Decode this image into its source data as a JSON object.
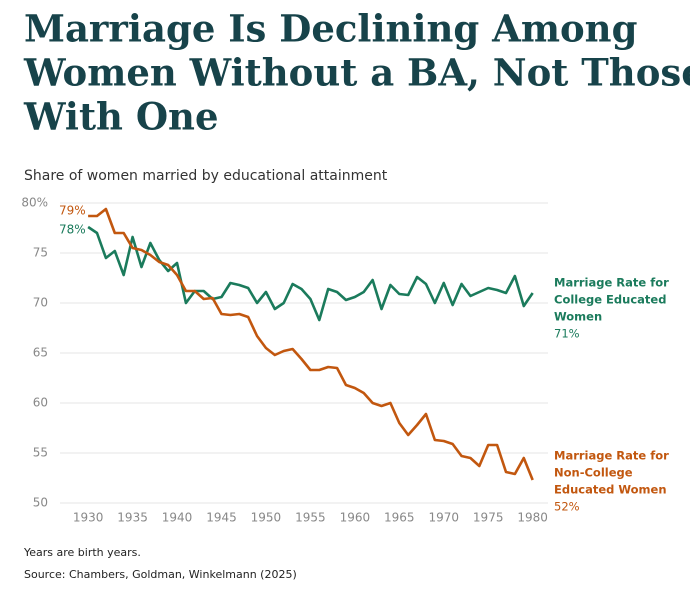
{
  "chart_data": {
    "type": "line",
    "title_lines": [
      "Marriage Is Declining Among",
      "Women Without a BA, Not Those",
      "With One"
    ],
    "subtitle": "Share of women married by educational attainment",
    "notes": [
      "Years are birth years.",
      "Source: Chambers, Goldman, Winkelmann (2025)"
    ],
    "x": [
      1930,
      1931,
      1932,
      1933,
      1934,
      1935,
      1936,
      1937,
      1938,
      1939,
      1940,
      1941,
      1942,
      1943,
      1944,
      1945,
      1946,
      1947,
      1948,
      1949,
      1950,
      1951,
      1952,
      1953,
      1954,
      1955,
      1956,
      1957,
      1958,
      1959,
      1960,
      1961,
      1962,
      1963,
      1964,
      1965,
      1966,
      1967,
      1968,
      1969,
      1970,
      1971,
      1972,
      1973,
      1974,
      1975,
      1976,
      1977,
      1978,
      1979,
      1980
    ],
    "xlim": [
      1926.5,
      1981.5
    ],
    "xticks": [
      1930,
      1935,
      1940,
      1945,
      1950,
      1955,
      1960,
      1965,
      1970,
      1975,
      1980
    ],
    "ylim": [
      50,
      80
    ],
    "yticks": [
      50,
      55,
      60,
      65,
      70,
      75,
      {
        "value": 80,
        "label": "80%"
      }
    ],
    "grid": true,
    "series": [
      {
        "label_lines": [
          "Marriage Rate for",
          "College Educated",
          "Women"
        ],
        "color": "#1b7b5c",
        "start_label": "78%",
        "end_label": "71%",
        "values": [
          77.6,
          77,
          74.5,
          75.2,
          72.8,
          76.6,
          73.6,
          76,
          74.3,
          73.2,
          74,
          70,
          71.2,
          71.2,
          70.4,
          70.6,
          72,
          71.8,
          71.5,
          70,
          71.1,
          69.4,
          70,
          71.9,
          71.4,
          70.4,
          68.3,
          71.4,
          71.1,
          70.3,
          70.6,
          71.1,
          72.3,
          69.4,
          71.8,
          70.9,
          70.8,
          72.6,
          71.9,
          70,
          72,
          69.8,
          71.9,
          70.7,
          71.1,
          71.5,
          71.3,
          71,
          72.7,
          69.7,
          71
        ]
      },
      {
        "label_lines": [
          "Marriage Rate for",
          "Non-College",
          "Educated Women"
        ],
        "color": "#c2570f",
        "start_label": "79%",
        "end_label": "52%",
        "values": [
          78.7,
          78.7,
          79.4,
          77,
          77,
          75.5,
          75.3,
          74.8,
          74.1,
          73.8,
          72.8,
          71.2,
          71.2,
          70.4,
          70.5,
          68.9,
          68.8,
          68.9,
          68.6,
          66.7,
          65.5,
          64.8,
          65.2,
          65.4,
          64.4,
          63.3,
          63.3,
          63.6,
          63.5,
          61.8,
          61.5,
          61,
          60,
          59.7,
          60,
          58,
          56.8,
          57.8,
          58.9,
          56.3,
          56.2,
          55.9,
          54.7,
          54.5,
          53.7,
          55.8,
          55.8,
          53.1,
          52.9,
          54.5,
          52.3
        ]
      }
    ]
  }
}
